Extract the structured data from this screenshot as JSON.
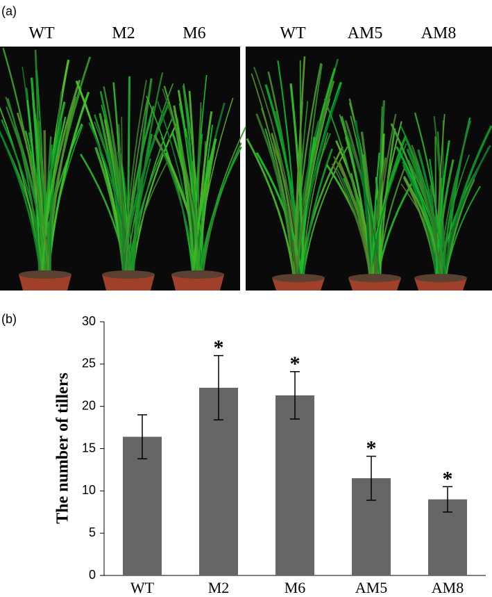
{
  "figure": {
    "panel_a_label": "(a)",
    "panel_b_label": "(b)",
    "photo_left_labels": [
      "WT",
      "M2",
      "M6"
    ],
    "photo_right_labels": [
      "WT",
      "AM5",
      "AM8"
    ]
  },
  "chart_data": {
    "type": "bar",
    "y_label": "The number of tillers",
    "categories": [
      "WT",
      "M2",
      "M6",
      "AM5",
      "AM8"
    ],
    "values": [
      16.4,
      22.2,
      21.3,
      11.5,
      9.0
    ],
    "errors": [
      2.6,
      3.8,
      2.8,
      2.6,
      1.5
    ],
    "annotations": [
      null,
      "*",
      "*",
      "*",
      "*"
    ],
    "color": "#666666",
    "ylim": [
      0,
      30
    ],
    "yticks": [
      0,
      5,
      10,
      15,
      20,
      25,
      30
    ]
  }
}
